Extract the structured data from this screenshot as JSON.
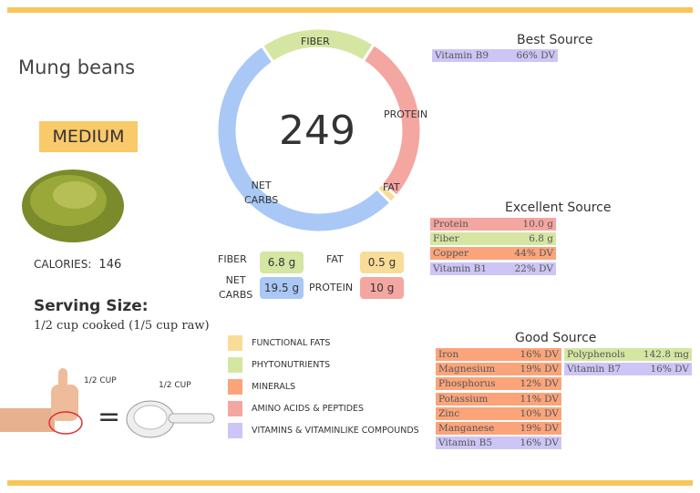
{
  "food": "Mung beans",
  "level": "MEDIUM",
  "calories_label": "CALORIES:",
  "calories": "146",
  "serving_label": "Serving Size:",
  "serving": "1/2 cup cooked (1/5 cup raw)",
  "hand_label": "1/2 CUP",
  "cup_label": "1/2 CUP",
  "equals": "=",
  "donut": {
    "center": "249",
    "labels": {
      "fiber": "FIBER",
      "protein": "PROTEIN",
      "fat": "FAT",
      "carbs1": "NET",
      "carbs2": "CARBS"
    },
    "segments": [
      {
        "name": "fiber",
        "grams": 6.8,
        "color": "#d5e6a2"
      },
      {
        "name": "protein",
        "grams": 10,
        "color": "#f4a6a0"
      },
      {
        "name": "fat",
        "grams": 0.5,
        "color": "#f9dc98"
      },
      {
        "name": "net-carbs",
        "grams": 19.5,
        "color": "#a9c8f5"
      }
    ]
  },
  "macros": {
    "fiber_label": "FIBER",
    "fiber": "6.8 g",
    "fat_label": "FAT",
    "fat": "0.5 g",
    "carbs_label1": "NET",
    "carbs_label2": "CARBS",
    "carbs": "19.5 g",
    "protein_label": "PROTEIN",
    "protein": "10 g"
  },
  "colors": {
    "minerals": "#fba47a",
    "vitamins": "#cdc5f5",
    "amino": "#f4a6a0",
    "phyto": "#d5e6a2",
    "fats": "#f9dc98"
  },
  "legend": [
    "FUNCTIONAL FATS",
    "PHYTONUTRIENTS",
    "MINERALS",
    "AMINO ACIDS & PEPTIDES",
    "VITAMINS & VITAMINLIKE COMPOUNDS"
  ],
  "best": {
    "title": "Best Source",
    "rows": [
      {
        "name": "Vitamin B9",
        "value": "66% DV",
        "type": "vitamins"
      }
    ]
  },
  "excellent": {
    "title": "Excellent Source",
    "rows": [
      {
        "name": "Protein",
        "value": "10.0 g",
        "type": "amino"
      },
      {
        "name": "Fiber",
        "value": "6.8 g",
        "type": "phyto"
      },
      {
        "name": "Copper",
        "value": "44% DV",
        "type": "minerals"
      },
      {
        "name": "Vitamin B1",
        "value": "22% DV",
        "type": "vitamins"
      }
    ]
  },
  "good": {
    "title": "Good Source",
    "col1": [
      {
        "name": "Iron",
        "value": "16% DV",
        "type": "minerals"
      },
      {
        "name": "Magnesium",
        "value": "19% DV",
        "type": "minerals"
      },
      {
        "name": "Phosphorus",
        "value": "12% DV",
        "type": "minerals"
      },
      {
        "name": "Potassium",
        "value": "11% DV",
        "type": "minerals"
      },
      {
        "name": "Zinc",
        "value": "10% DV",
        "type": "minerals"
      },
      {
        "name": "Manganese",
        "value": "19% DV",
        "type": "minerals"
      },
      {
        "name": "Vitamin B5",
        "value": "16% DV",
        "type": "vitamins"
      }
    ],
    "col2": [
      {
        "name": "Polyphenols",
        "value": "142.8 mg",
        "type": "phyto"
      },
      {
        "name": "Vitamin B7",
        "value": "16% DV",
        "type": "vitamins"
      }
    ]
  }
}
